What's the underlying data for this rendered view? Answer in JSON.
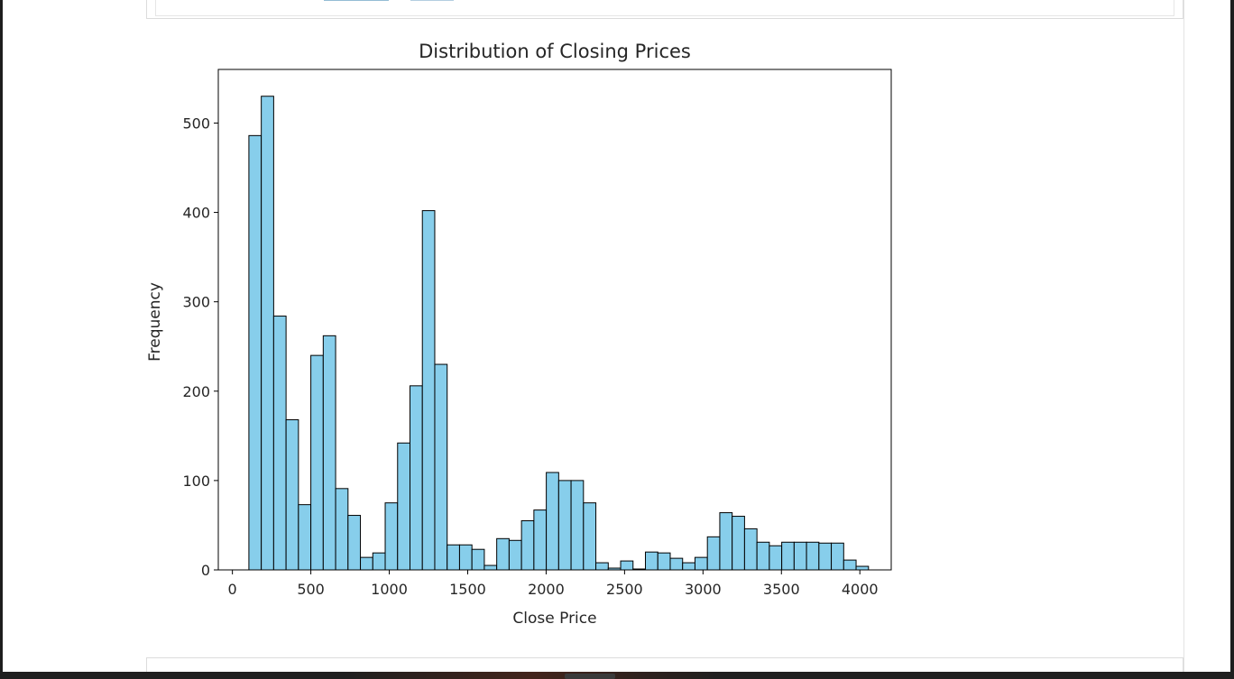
{
  "chart_data": {
    "type": "bar",
    "title": "Distribution of Closing Prices",
    "xlabel": "Close Price",
    "ylabel": "Frequency",
    "xlim": [
      -90,
      4200
    ],
    "ylim": [
      0,
      560
    ],
    "xticks": [
      0,
      500,
      1000,
      1500,
      2000,
      2500,
      3000,
      3500,
      4000
    ],
    "yticks": [
      0,
      100,
      200,
      300,
      400,
      500
    ],
    "bin_start": 105,
    "bin_width": 79,
    "values": [
      486,
      530,
      284,
      168,
      73,
      240,
      262,
      91,
      61,
      14,
      19,
      75,
      142,
      206,
      402,
      230,
      28,
      28,
      23,
      5,
      35,
      33,
      55,
      67,
      109,
      100,
      100,
      75,
      8,
      2,
      10,
      1,
      20,
      19,
      13,
      8,
      14,
      37,
      64,
      60,
      46,
      31,
      27,
      31,
      31,
      31,
      30,
      30,
      11,
      4
    ],
    "bar_color": "#87ceeb",
    "edge_color": "#000000",
    "grid": false
  }
}
